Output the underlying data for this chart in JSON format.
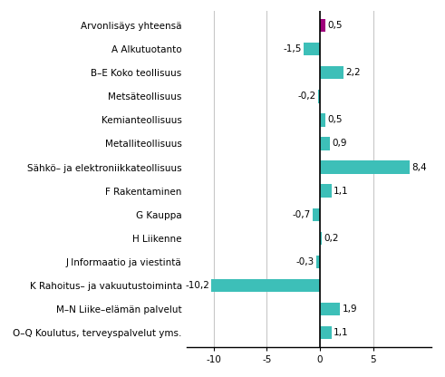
{
  "categories": [
    "Arvonlisäys yhteensä",
    "A Alkutuotanto",
    "B–E Koko teollisuus",
    "Metsäteollisuus",
    "Kemianteollisuus",
    "Metalliteollisuus",
    "Sähkö– ja elektroniikkateollisuus",
    "F Rakentaminen",
    "G Kauppa",
    "H Liikenne",
    "J Informaatio ja viestintä",
    "K Rahoitus– ja vakuutustoiminta",
    "M–N Liike–elämän palvelut",
    "O–Q Koulutus, terveyspalvelut yms."
  ],
  "values": [
    0.5,
    -1.5,
    2.2,
    -0.2,
    0.5,
    0.9,
    8.4,
    1.1,
    -0.7,
    0.2,
    -0.3,
    -10.2,
    1.9,
    1.1
  ],
  "teal_color": "#3dbfb8",
  "pink_color": "#a0007c",
  "xlim": [
    -12.5,
    10.5
  ],
  "xticks": [
    -10,
    -5,
    0,
    5
  ],
  "grid_color": "#c8c8c8",
  "background_color": "#ffffff",
  "fontsize": 7.5,
  "value_fontsize": 7.5,
  "bar_height": 0.55
}
